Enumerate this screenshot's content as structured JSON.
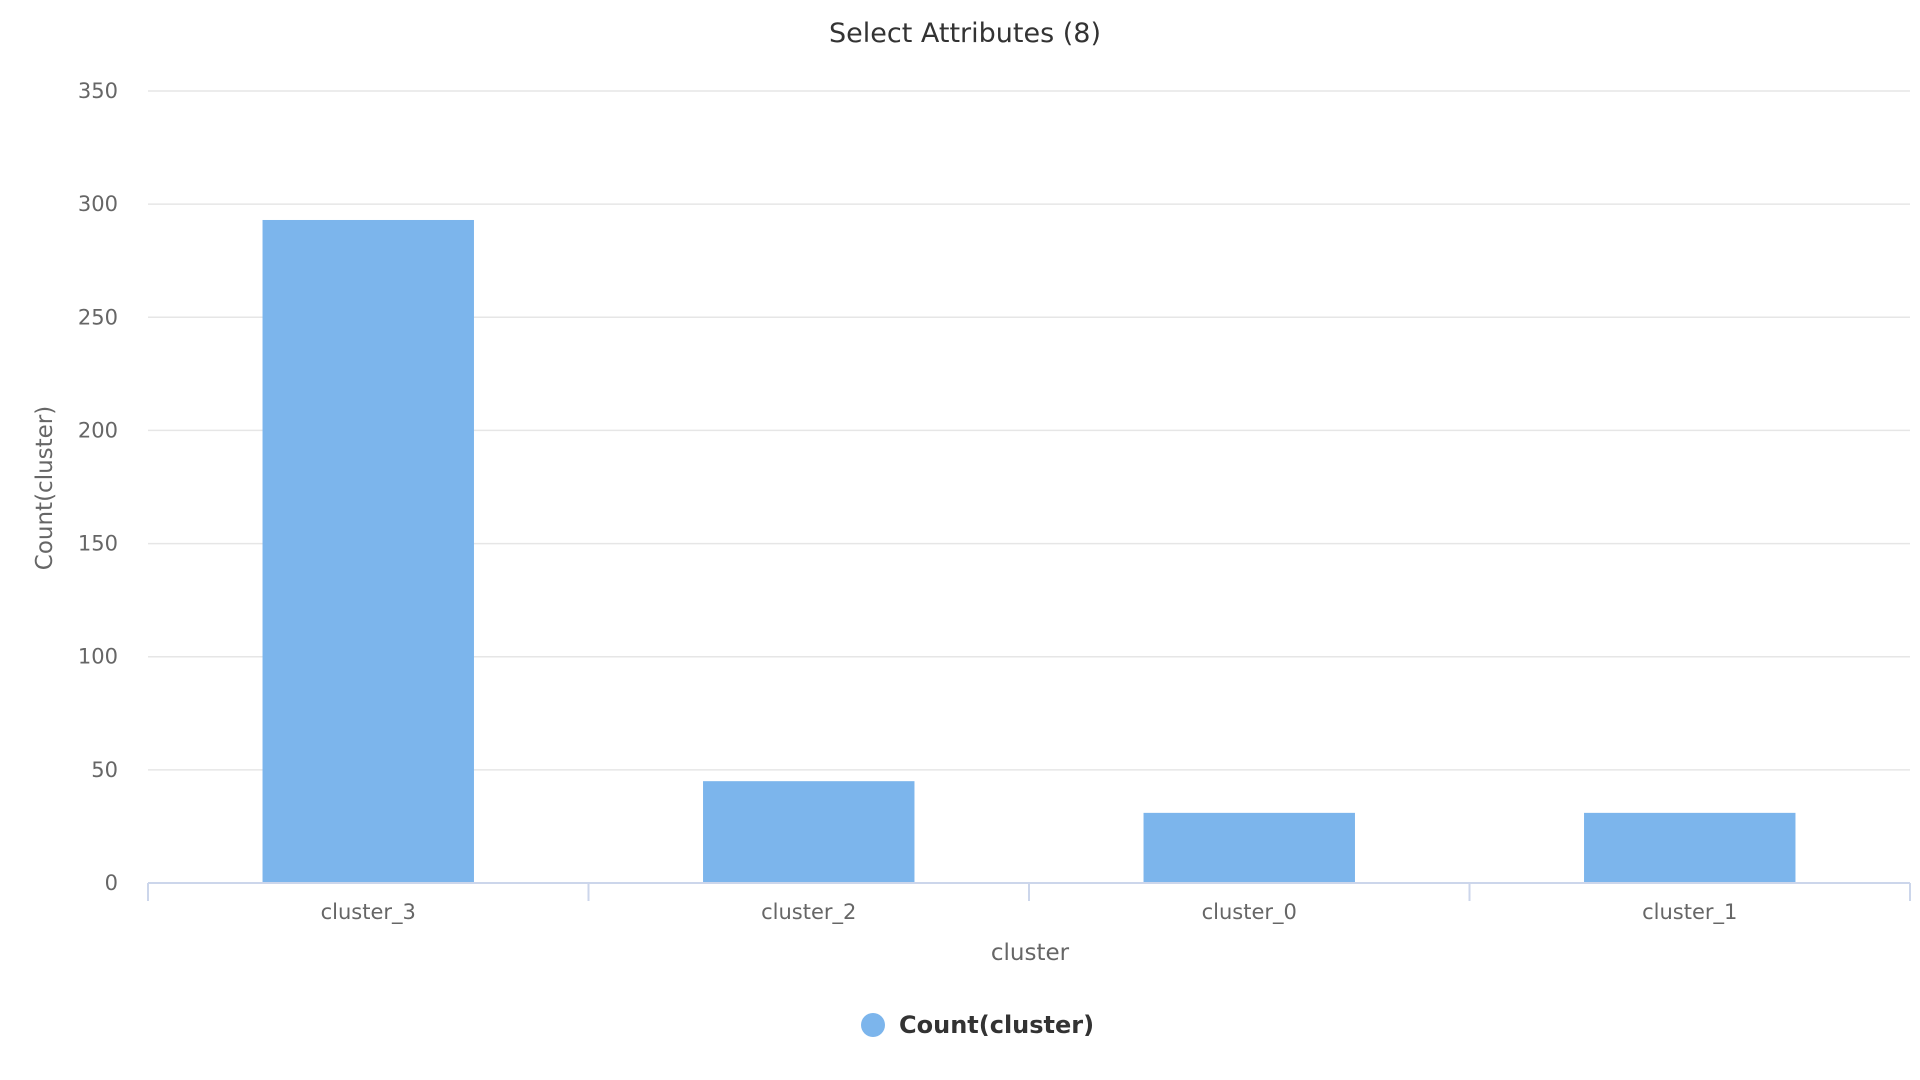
{
  "chart_data": {
    "type": "bar",
    "title": "Select Attributes (8)",
    "xlabel": "cluster",
    "ylabel": "Count(cluster)",
    "categories": [
      "cluster_3",
      "cluster_2",
      "cluster_0",
      "cluster_1"
    ],
    "series": [
      {
        "name": "Count(cluster)",
        "values": [
          293,
          45,
          31,
          31
        ],
        "color": "#7cb5ec"
      }
    ],
    "ylim": [
      0,
      350
    ],
    "yticks": [
      0,
      50,
      100,
      150,
      200,
      250,
      300,
      350
    ],
    "grid": true,
    "legend_position": "bottom-center"
  }
}
